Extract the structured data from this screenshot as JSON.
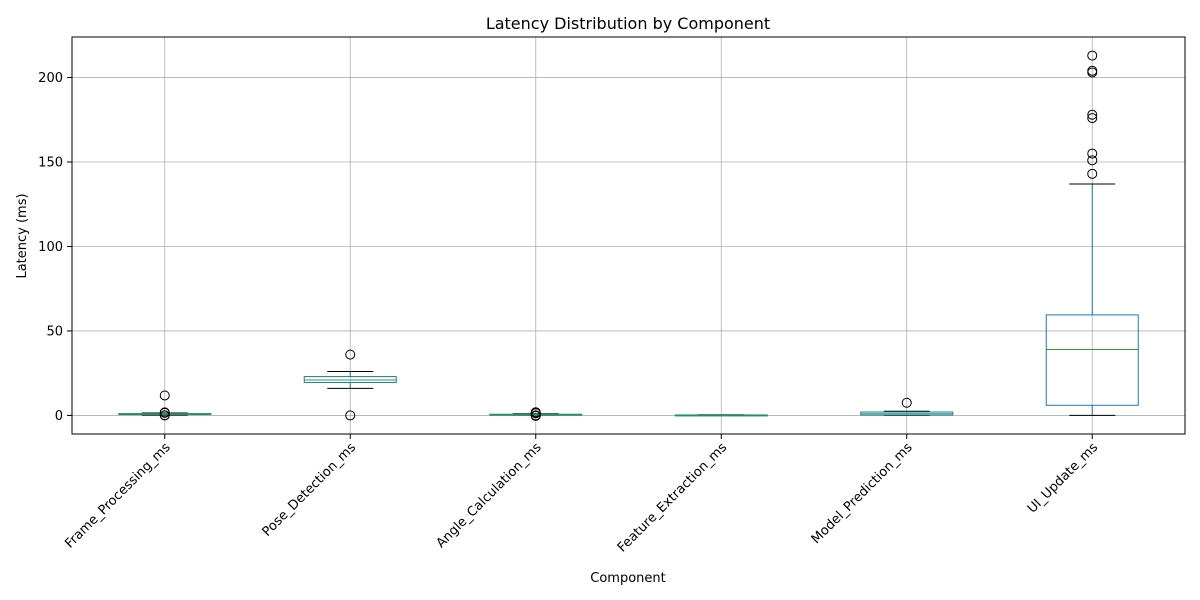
{
  "chart_data": {
    "type": "box",
    "title": "Latency Distribution by Component",
    "xlabel": "Component",
    "ylabel": "Latency (ms)",
    "ylim": [
      -11,
      224
    ],
    "y_ticks": [
      0,
      50,
      100,
      150,
      200
    ],
    "grid": true,
    "categories": [
      "Frame_Processing_ms",
      "Pose_Detection_ms",
      "Angle_Calculation_ms",
      "Feature_Extraction_ms",
      "Model_Prediction_ms",
      "UI_Update_ms"
    ],
    "boxes": [
      {
        "name": "Frame_Processing_ms",
        "whisker_low": 0.2,
        "q1": 0.5,
        "median": 0.8,
        "q3": 1.1,
        "whisker_high": 1.4,
        "outliers": [
          11.8,
          1.8,
          1.5,
          0.0,
          0.1
        ]
      },
      {
        "name": "Pose_Detection_ms",
        "whisker_low": 16,
        "q1": 19.5,
        "median": 21,
        "q3": 23,
        "whisker_high": 26,
        "outliers": [
          36,
          0
        ]
      },
      {
        "name": "Angle_Calculation_ms",
        "whisker_low": 0.2,
        "q1": 0.4,
        "median": 0.5,
        "q3": 0.7,
        "whisker_high": 1.0,
        "outliers": [
          0.0,
          -0.3,
          1.3,
          1.6,
          1.9
        ]
      },
      {
        "name": "Feature_Extraction_ms",
        "whisker_low": 0.0,
        "q1": 0.1,
        "median": 0.2,
        "q3": 0.3,
        "whisker_high": 0.4,
        "outliers": []
      },
      {
        "name": "Model_Prediction_ms",
        "whisker_low": 0.0,
        "q1": 0.2,
        "median": 1.0,
        "q3": 2.0,
        "whisker_high": 2.5,
        "outliers": [
          7.5
        ]
      },
      {
        "name": "UI_Update_ms",
        "whisker_low": 0,
        "q1": 6,
        "median": 39,
        "q3": 59.5,
        "whisker_high": 137,
        "outliers": [
          143,
          151,
          155,
          176,
          178,
          203,
          204,
          213
        ]
      }
    ],
    "colors": {
      "box": "#1f77b4",
      "median": "#2ca02c",
      "whisker": "#000000",
      "grid": "#b0b0b0"
    }
  }
}
